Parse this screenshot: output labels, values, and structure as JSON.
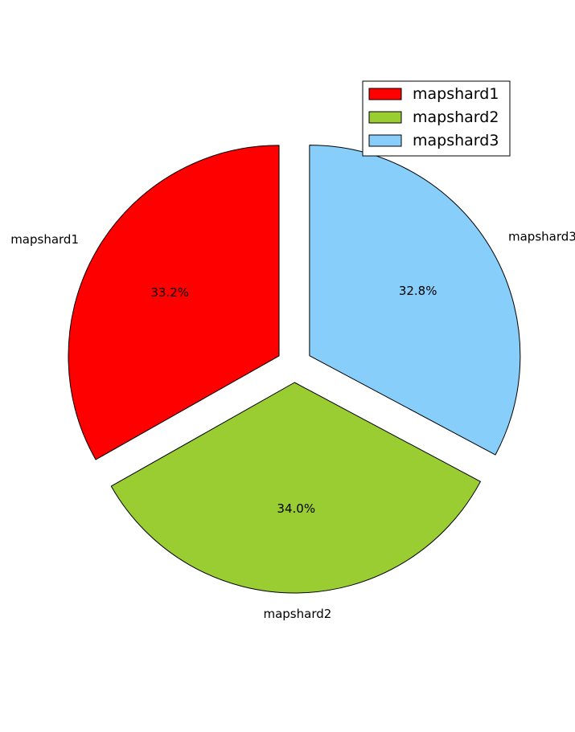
{
  "chart_data": {
    "type": "pie",
    "title": "",
    "categories": [
      "mapshard1",
      "mapshard2",
      "mapshard3"
    ],
    "values": [
      33.2,
      34.0,
      32.8
    ],
    "value_labels": [
      "33.2%",
      "34.0%",
      "32.8%"
    ],
    "colors": [
      "#ff0000",
      "#9acd32",
      "#87cefa"
    ],
    "exploded": true,
    "start_angle_deg": 90,
    "direction": "counterclockwise",
    "legend": {
      "position": "top-right",
      "entries": [
        "mapshard1",
        "mapshard2",
        "mapshard3"
      ]
    }
  }
}
